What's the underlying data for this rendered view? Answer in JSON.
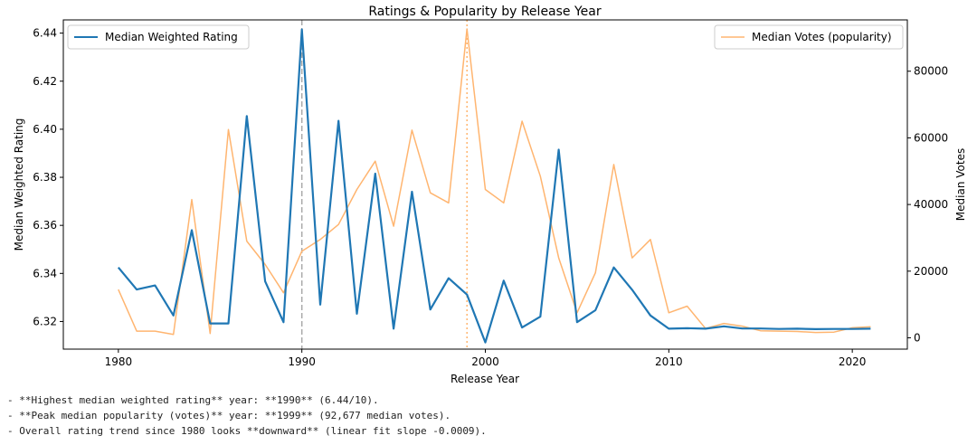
{
  "chart_data": {
    "type": "line",
    "title": "Ratings & Popularity by Release Year",
    "xlabel": "Release Year",
    "ylabel_left": "Median Weighted Rating",
    "ylabel_right": "Median Votes",
    "xlim": [
      1977.0,
      2023.0
    ],
    "ylim_left": [
      6.3085,
      6.4455
    ],
    "ylim_right": [
      -3400,
      95400
    ],
    "x_ticks": [
      1980,
      1990,
      2000,
      2010,
      2020
    ],
    "y_left_ticks": [
      "6.32",
      "6.34",
      "6.36",
      "6.38",
      "6.40",
      "6.42",
      "6.44"
    ],
    "y_right_ticks": [
      "0",
      "20000",
      "40000",
      "60000",
      "80000"
    ],
    "grid": false,
    "x": [
      1980,
      1981,
      1982,
      1983,
      1984,
      1985,
      1986,
      1987,
      1988,
      1989,
      1990,
      1991,
      1992,
      1993,
      1994,
      1995,
      1996,
      1997,
      1998,
      1999,
      2000,
      2001,
      2002,
      2003,
      2004,
      2005,
      2006,
      2007,
      2008,
      2009,
      2010,
      2011,
      2012,
      2013,
      2014,
      2015,
      2016,
      2017,
      2018,
      2019,
      2020,
      2021
    ],
    "series": [
      {
        "name": "Median Weighted Rating",
        "axis": "left",
        "color": "#1f77b4",
        "values": [
          6.3425,
          6.3333,
          6.335,
          6.3225,
          6.358,
          6.3192,
          6.3192,
          6.4055,
          6.3367,
          6.3197,
          6.4415,
          6.327,
          6.4035,
          6.3232,
          6.3815,
          6.317,
          6.374,
          6.325,
          6.338,
          6.3312,
          6.3113,
          6.337,
          6.3175,
          6.322,
          6.3915,
          6.3197,
          6.3247,
          6.3425,
          6.3332,
          6.3225,
          6.317,
          6.3172,
          6.317,
          6.318,
          6.3171,
          6.3171,
          6.3169,
          6.317,
          6.3168,
          6.3169,
          6.3169,
          6.317
        ]
      },
      {
        "name": "Median Votes (popularity)",
        "axis": "right",
        "color": "#ff7f0e",
        "values": [
          14500,
          2000,
          2000,
          1000,
          41500,
          1300,
          62500,
          29000,
          22000,
          13500,
          26000,
          29500,
          34000,
          44500,
          53000,
          33500,
          62300,
          43500,
          40500,
          92677,
          44500,
          40500,
          65000,
          48500,
          24000,
          7500,
          19500,
          52000,
          24000,
          29500,
          7500,
          9500,
          2800,
          4300,
          3500,
          2100,
          2000,
          1900,
          1600,
          1700,
          3000,
          3300
        ]
      }
    ],
    "reference_lines": [
      {
        "x": 1990,
        "color": "#aaaaaa",
        "style": "dashed"
      },
      {
        "x": 1999,
        "color": "#ffb570",
        "style": "dotted"
      }
    ],
    "legend_left_position": "upper-left",
    "legend_right_position": "upper-right"
  },
  "notes": [
    "- **Highest median weighted rating** year: **1990** (6.44/10).",
    "- **Peak median popularity (votes)** year: **1999** (92,677 median votes).",
    "- Overall rating trend since 1980 looks **downward** (linear fit slope -0.0009)."
  ]
}
